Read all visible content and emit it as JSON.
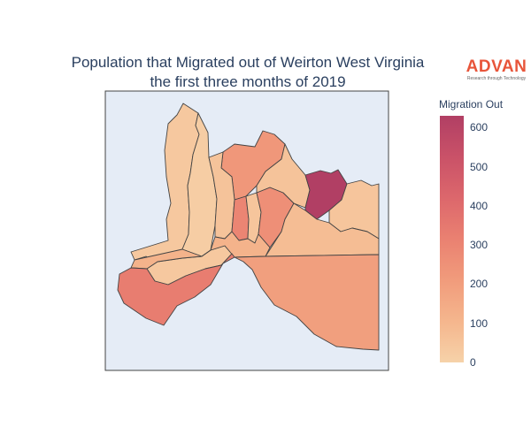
{
  "title": {
    "line1": "Population that Migrated out of Weirton West Virginia",
    "line2": "the first three months of 2019"
  },
  "logo": {
    "name": "ADVAN",
    "tagline": "Research through Technology",
    "color": "#e8553a"
  },
  "map": {
    "background": "#e5ecf6",
    "region_border_color": "#444444",
    "regions": [
      {
        "id": "north-west",
        "value": 40
      },
      {
        "id": "west-strip",
        "value": 20
      },
      {
        "id": "center-upper",
        "value": 230
      },
      {
        "id": "center-left-small",
        "value": 60
      },
      {
        "id": "center-tall",
        "value": 300
      },
      {
        "id": "center-right-small",
        "value": 50
      },
      {
        "id": "center-right",
        "value": 260
      },
      {
        "id": "north-center",
        "value": 60
      },
      {
        "id": "north-east",
        "value": 630
      },
      {
        "id": "east-upper",
        "value": 50
      },
      {
        "id": "east-middle",
        "value": 80
      },
      {
        "id": "center-south-small",
        "value": 40
      },
      {
        "id": "middle-band",
        "value": 120
      },
      {
        "id": "south-west",
        "value": 330
      },
      {
        "id": "south-east",
        "value": 200
      }
    ]
  },
  "colorbar": {
    "title": "Migration Out",
    "min": 0,
    "max": 630,
    "ticks": [
      "0",
      "100",
      "200",
      "300",
      "400",
      "500",
      "600"
    ],
    "colors": [
      "#f6d2a9",
      "#f5b78e",
      "#f19c7c",
      "#ea8171",
      "#dd686c",
      "#ca5268",
      "#b13f64"
    ]
  }
}
